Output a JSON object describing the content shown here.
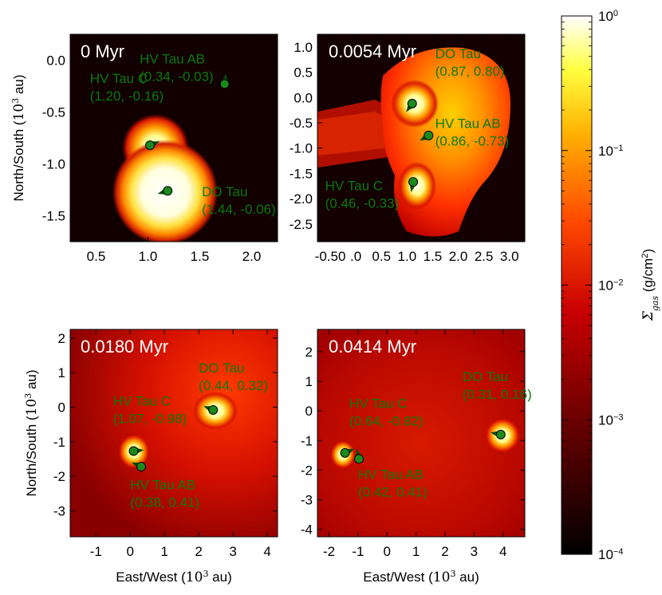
{
  "chart_data": [
    {
      "type": "heatmap",
      "title": "0 Myr",
      "xlabel": "",
      "ylabel": "North/South (10^3 au)",
      "ylabel_main": "North/South (",
      "ylabel_exp": "3",
      "ylabel_unit": " au)",
      "xlim": [
        0.25,
        2.25
      ],
      "ylim": [
        -1.75,
        0.25
      ],
      "xticks": [
        0.5,
        1.0,
        1.5,
        2.0
      ],
      "xtick_labels": [
        "0.5",
        "1.0",
        "1.5",
        "2.0"
      ],
      "yticks": [
        0.0,
        -0.5,
        -1.0,
        -1.5
      ],
      "ytick_labels": [
        "0.0",
        "-0.5",
        "-1.0",
        "-1.5"
      ],
      "stars": [
        {
          "name": "HV Tau AB",
          "coords": "(0.34, -0.03)",
          "x": 1.74,
          "y": -0.23,
          "lx": 0.92,
          "ly": -0.03,
          "dir": [
            0.1,
            1
          ]
        },
        {
          "name": "HV Tau C",
          "coords": "(1.20, -0.16)",
          "x": 1.02,
          "y": -0.82,
          "lx": 0.44,
          "ly": -0.22,
          "dir": [
            1,
            0.4
          ]
        },
        {
          "name": "DO Tau",
          "coords": "(1.44, -0.06)",
          "x": 1.19,
          "y": -1.26,
          "lx": 1.52,
          "ly": -1.31,
          "dir": [
            -1,
            -0.3
          ]
        }
      ]
    },
    {
      "type": "heatmap",
      "title": "0.0054 Myr",
      "xlabel": "",
      "ylabel": "",
      "xlim": [
        -0.75,
        3.3
      ],
      "ylim": [
        -2.85,
        1.25
      ],
      "xticks": [
        -0.5,
        0.0,
        0.5,
        1.0,
        1.5,
        2.0,
        2.5,
        3.0
      ],
      "xtick_labels": [
        "-0.50",
        ".0",
        "0.5",
        "1.0",
        "1.5",
        "2.0",
        "2.5",
        "3.0"
      ],
      "yticks": [
        1.0,
        0.5,
        0.0,
        -0.5,
        -1.0,
        -1.5,
        -2.0,
        -2.5
      ],
      "ytick_labels": [
        "1.0",
        "0.5",
        "0.0",
        "-0.5",
        "-1.0",
        "-1.5",
        "-2.0",
        "-2.5"
      ],
      "stars": [
        {
          "name": "DO Tau",
          "coords": "(0.87, 0.80)",
          "x": 1.1,
          "y": -0.12,
          "lx": 1.55,
          "ly": 0.78,
          "dir": [
            -0.7,
            -1
          ]
        },
        {
          "name": "HV Tau AB",
          "coords": "(0.86, -0.73)",
          "x": 1.42,
          "y": -0.75,
          "lx": 1.55,
          "ly": -0.6,
          "dir": [
            -1,
            -0.6
          ]
        },
        {
          "name": "HV Tau C",
          "coords": "(0.46, -0.33)",
          "x": 1.12,
          "y": -1.67,
          "lx": -0.6,
          "ly": -1.83,
          "dir": [
            -0.2,
            -1
          ]
        }
      ]
    },
    {
      "type": "heatmap",
      "title": "0.0180 Myr",
      "xlabel": "East/West (10^3 au)",
      "xlabel_main": "East/West (",
      "xlabel_exp": "3",
      "xlabel_unit": " au)",
      "ylabel": "North/South (10^3 au)",
      "ylabel_main": "North/South (",
      "ylabel_exp": "3",
      "ylabel_unit": " au)",
      "xlim": [
        -1.75,
        4.3
      ],
      "ylim": [
        -3.75,
        2.25
      ],
      "xticks": [
        -1,
        0,
        1,
        2,
        3,
        4
      ],
      "xtick_labels": [
        "-1",
        "0",
        "1",
        "2",
        "3",
        "4"
      ],
      "yticks": [
        2,
        1,
        0,
        -1,
        -2,
        -3
      ],
      "ytick_labels": [
        "2",
        "1",
        "0",
        "-1",
        "-2",
        "-3"
      ],
      "stars": [
        {
          "name": "DO Tau",
          "coords": "(0.44, 0.32)",
          "x": 2.42,
          "y": -0.08,
          "lx": 2.0,
          "ly": 1.0,
          "dir": [
            -1,
            0.4
          ]
        },
        {
          "name": "HV Tau C",
          "coords": "(1.07, -0.98)",
          "x": 0.1,
          "y": -1.27,
          "lx": -0.5,
          "ly": 0.05,
          "dir": [
            1,
            0.1
          ]
        },
        {
          "name": "HV Tau AB",
          "coords": "(0.38, 0.41)",
          "x": 0.32,
          "y": -1.72,
          "lx": 0.0,
          "ly": -2.38,
          "dir": [
            -0.9,
            0.4
          ]
        }
      ]
    },
    {
      "type": "heatmap",
      "title": "0.0414 Myr",
      "xlabel": "East/West (10^3 au)",
      "xlabel_main": "East/West (",
      "xlabel_exp": "3",
      "xlabel_unit": " au)",
      "ylabel": "",
      "xlim": [
        -2.4,
        4.75
      ],
      "ylim": [
        -4.25,
        2.75
      ],
      "xticks": [
        -2,
        -1,
        0,
        1,
        2,
        3,
        4
      ],
      "xtick_labels": [
        "-2",
        "-1",
        "0",
        "1",
        "2",
        "3",
        "4"
      ],
      "yticks": [
        2,
        1,
        0,
        -1,
        -2,
        -3,
        -4
      ],
      "ytick_labels": [
        "2",
        "1",
        "0",
        "-1",
        "-2",
        "-3",
        "-4"
      ],
      "stars": [
        {
          "name": "DO Tau",
          "coords": "(0.31, 0.16)",
          "x": 3.92,
          "y": -0.8,
          "lx": 2.6,
          "ly": 1.0,
          "dir": [
            -1,
            0.2
          ]
        },
        {
          "name": "HV Tau C",
          "coords": "(0.64, -0.82)",
          "x": -1.45,
          "y": -1.42,
          "lx": -1.3,
          "ly": 0.1,
          "dir": [
            0.9,
            0.4
          ]
        },
        {
          "name": "HV Tau AB",
          "coords": "(0.42, 0.41)",
          "x": -0.97,
          "y": -1.62,
          "lx": -1.0,
          "ly": -2.3,
          "dir": [
            -0.2,
            1
          ]
        }
      ]
    }
  ],
  "colorbar": {
    "label": "Σgas (g/cm²)",
    "label_sym": "Σ",
    "label_sub": "gas",
    "label_unit": " (g/cm",
    "label_unit_exp": "2",
    "label_unit_end": ")",
    "ticks": [
      {
        "base": "10",
        "exp": "0",
        "value": 1
      },
      {
        "base": "10",
        "exp": "−1",
        "value": 0.1
      },
      {
        "base": "10",
        "exp": "−2",
        "value": 0.01
      },
      {
        "base": "10",
        "exp": "−3",
        "value": 0.001
      },
      {
        "base": "10",
        "exp": "−4",
        "value": 0.0001
      }
    ],
    "range": [
      0.0001,
      1
    ],
    "scale": "log"
  },
  "colors": {
    "star_fill": "#1a8a1a",
    "label": "#0a7a0a"
  }
}
